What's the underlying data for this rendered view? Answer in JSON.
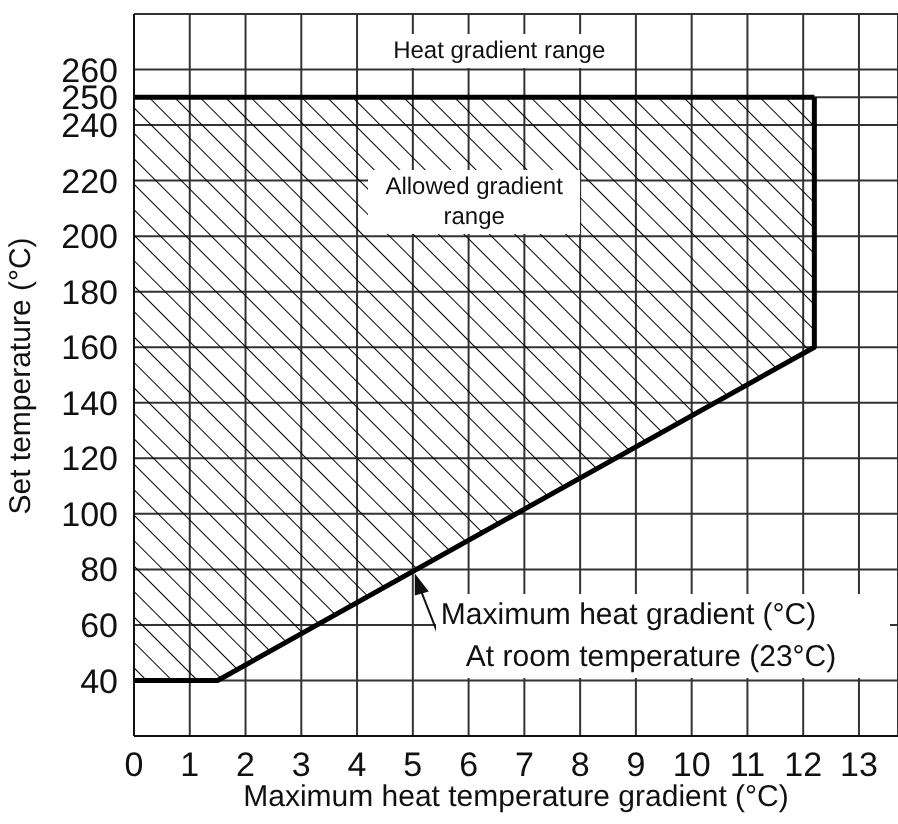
{
  "chart_data": {
    "type": "line",
    "xlabel": "Maximum heat temperature gradient (°C)",
    "ylabel": "Set temperature (°C)",
    "series": [
      {
        "color": "#000000",
        "x": [
          0,
          1.5,
          12.2,
          12.2
        ],
        "values": [
          40,
          40,
          160,
          250
        ],
        "lower": [
          40,
          40,
          160,
          250
        ],
        "upper": [
          250,
          250,
          250,
          250
        ]
      },
      {
        "color": "#000000",
        "x": [
          0,
          12.2
        ],
        "values": [
          250,
          250
        ]
      }
    ],
    "xlim": [
      0,
      13.7
    ],
    "xticks": [
      0,
      1,
      2,
      3,
      4,
      5,
      6,
      7,
      8,
      9,
      10,
      11,
      12,
      13
    ],
    "ylim": [
      20,
      280
    ],
    "yticks": [
      40,
      60,
      80,
      100,
      120,
      140,
      160,
      180,
      200,
      220,
      240,
      250,
      260
    ],
    "grid": true,
    "legend": false,
    "annotations": [
      "Heat gradient range",
      "Allowed gradient range",
      {
        "text": "Maximum heat gradient (°C)\nAt room temperature (23°C)",
        "x": 5,
        "y": 80
      }
    ]
  }
}
